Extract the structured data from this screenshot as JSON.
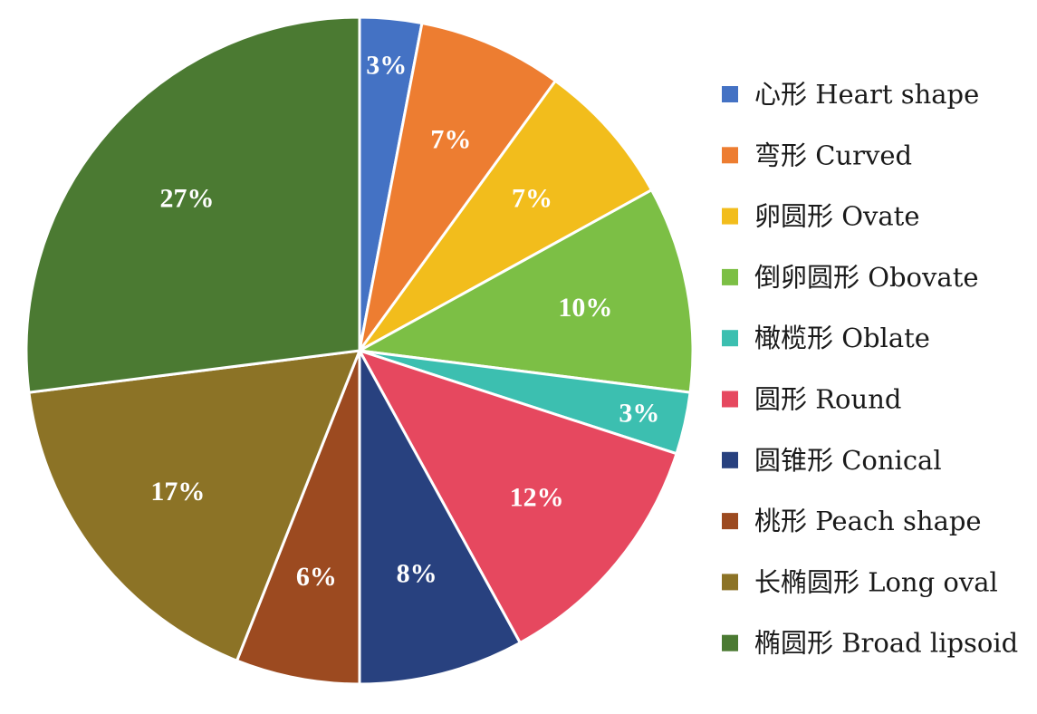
{
  "chart_data": {
    "type": "pie",
    "start_angle_deg": 0,
    "direction": "clockwise",
    "legend_position": "right",
    "slices": [
      {
        "label": "心形 Heart shape",
        "value": 3,
        "display": "3%",
        "color": "#4472C4"
      },
      {
        "label": "弯形 Curved",
        "value": 7,
        "display": "7%",
        "color": "#ED7D31"
      },
      {
        "label": "卵圆形 Ovate",
        "value": 7,
        "display": "7%",
        "color": "#F2BD1C"
      },
      {
        "label": "倒卵圆形 Obovate",
        "value": 10,
        "display": "10%",
        "color": "#7CBF45"
      },
      {
        "label": "橄榄形 Oblate",
        "value": 3,
        "display": "3%",
        "color": "#3CBFB0"
      },
      {
        "label": "圆形 Round",
        "value": 12,
        "display": "12%",
        "color": "#E6485F"
      },
      {
        "label": "圆锥形 Conical",
        "value": 8,
        "display": "8%",
        "color": "#28417F"
      },
      {
        "label": "桃形 Peach shape",
        "value": 6,
        "display": "6%",
        "color": "#9C4A20"
      },
      {
        "label": "长椭圆形 Long oval",
        "value": 17,
        "display": "17%",
        "color": "#8C7326"
      },
      {
        "label": "椭圆形 Broad lipsoid",
        "value": 27,
        "display": "27%",
        "color": "#4B7A32"
      }
    ]
  }
}
